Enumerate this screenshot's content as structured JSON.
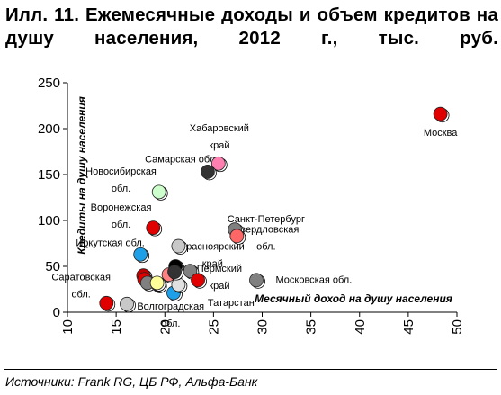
{
  "title": "Илл. 11. Ежемесячные доходы и объем кредитов на душу населения, 2012 г., тыс. руб.",
  "source": "Источники: Frank RG, ЦБ РФ, Альфа-Банк",
  "chart_data": {
    "type": "scatter",
    "xlabel": "Месячный доход на душу населения",
    "ylabel": "Кредиты на душу населения",
    "xlim": [
      10,
      50
    ],
    "ylim": [
      0,
      250
    ],
    "xticks": [
      10,
      15,
      20,
      25,
      30,
      35,
      40,
      45,
      50
    ],
    "yticks": [
      0,
      50,
      100,
      150,
      200,
      250
    ],
    "grid": false,
    "points": [
      {
        "name": "Москва",
        "x": 48.3,
        "y": 216,
        "color": "#e00000"
      },
      {
        "name": "Хабаровский край",
        "x": 25.5,
        "y": 162,
        "color": "#ff80b0"
      },
      {
        "name": "Самарская обл.",
        "x": 24.4,
        "y": 153,
        "color": "#333333"
      },
      {
        "name": "Новосибирская обл.",
        "x": 19.4,
        "y": 131,
        "color": "#ccffcc"
      },
      {
        "name": "Воронежская обл.",
        "x": 18.8,
        "y": 92,
        "color": "#e00000"
      },
      {
        "name": "Иркутская обл.",
        "x": 17.5,
        "y": 63,
        "color": "#1ea0e8"
      },
      {
        "name": "Санкт-Петербург",
        "x": 27.2,
        "y": 90,
        "color": "#808080"
      },
      {
        "name": "Свердловская обл.",
        "x": 27.4,
        "y": 83,
        "color": "#ff6666"
      },
      {
        "name": "Красноярский край",
        "x": 21.4,
        "y": 72,
        "color": "#c8c8c8"
      },
      {
        "name": "Пермский край",
        "x": 22.6,
        "y": 45,
        "color": "#808080"
      },
      {
        "name": "Московская обл.",
        "x": 29.4,
        "y": 35,
        "color": "#808080"
      },
      {
        "name": "Татарстан",
        "x": 23.4,
        "y": 35,
        "color": "#e00000"
      },
      {
        "name": "Саратовская обл.",
        "x": 14.0,
        "y": 10,
        "color": "#e00000"
      },
      {
        "name": "Волгоградская обл.",
        "x": 20.9,
        "y": 21,
        "color": "#1ea0e8"
      },
      {
        "name": "",
        "x": 16.1,
        "y": 9,
        "color": "#c8c8c8"
      },
      {
        "name": "",
        "x": 17.8,
        "y": 40,
        "color": "#c00000"
      },
      {
        "name": "",
        "x": 17.9,
        "y": 36,
        "color": "#e00000"
      },
      {
        "name": "",
        "x": 18.2,
        "y": 32,
        "color": "#808080"
      },
      {
        "name": "",
        "x": 19.3,
        "y": 30,
        "color": "#c8c8c8"
      },
      {
        "name": "",
        "x": 19.2,
        "y": 32,
        "color": "#ffff99"
      },
      {
        "name": "",
        "x": 20.4,
        "y": 41,
        "color": "#ff8080"
      },
      {
        "name": "",
        "x": 21.1,
        "y": 50,
        "color": "#000000"
      },
      {
        "name": "",
        "x": 21.4,
        "y": 30,
        "color": "#e0e0e0"
      },
      {
        "name": "",
        "x": 21.0,
        "y": 44,
        "color": "#333333"
      }
    ],
    "labels": [
      {
        "lines": [
          "Москва"
        ],
        "x": 48.3,
        "y": 192,
        "anchor": "middle"
      },
      {
        "lines": [
          "Хабаровский",
          "край"
        ],
        "x": 25.6,
        "y": 197,
        "anchor": "middle"
      },
      {
        "lines": [
          "Самарская обл."
        ],
        "x": 21.7,
        "y": 163,
        "anchor": "middle"
      },
      {
        "lines": [
          "Новосибирская",
          "обл."
        ],
        "x": 15.5,
        "y": 150,
        "anchor": "middle"
      },
      {
        "lines": [
          "Воронежская",
          "обл."
        ],
        "x": 15.5,
        "y": 111,
        "anchor": "middle"
      },
      {
        "lines": [
          "Иркутская обл."
        ],
        "x": 14.4,
        "y": 72,
        "anchor": "middle"
      },
      {
        "lines": [
          "Санкт-Петербург"
        ],
        "x": 30.4,
        "y": 98,
        "anchor": "middle"
      },
      {
        "lines": [
          "Свердловская",
          "обл."
        ],
        "x": 30.4,
        "y": 87,
        "anchor": "middle"
      },
      {
        "lines": [
          "Красноярский",
          "край"
        ],
        "x": 24.9,
        "y": 68,
        "anchor": "middle"
      },
      {
        "lines": [
          "Пермский",
          "край"
        ],
        "x": 25.6,
        "y": 44,
        "anchor": "middle"
      },
      {
        "lines": [
          "Московская обл."
        ],
        "x": 35.3,
        "y": 32,
        "anchor": "middle"
      },
      {
        "lines": [
          "Татарстан"
        ],
        "x": 26.8,
        "y": 7,
        "anchor": "middle"
      },
      {
        "lines": [
          "Саратовская",
          "обл."
        ],
        "x": 11.4,
        "y": 35,
        "anchor": "middle"
      },
      {
        "lines": [
          "Волгоградская",
          "обл."
        ],
        "x": 20.6,
        "y": 3,
        "anchor": "middle"
      }
    ]
  }
}
